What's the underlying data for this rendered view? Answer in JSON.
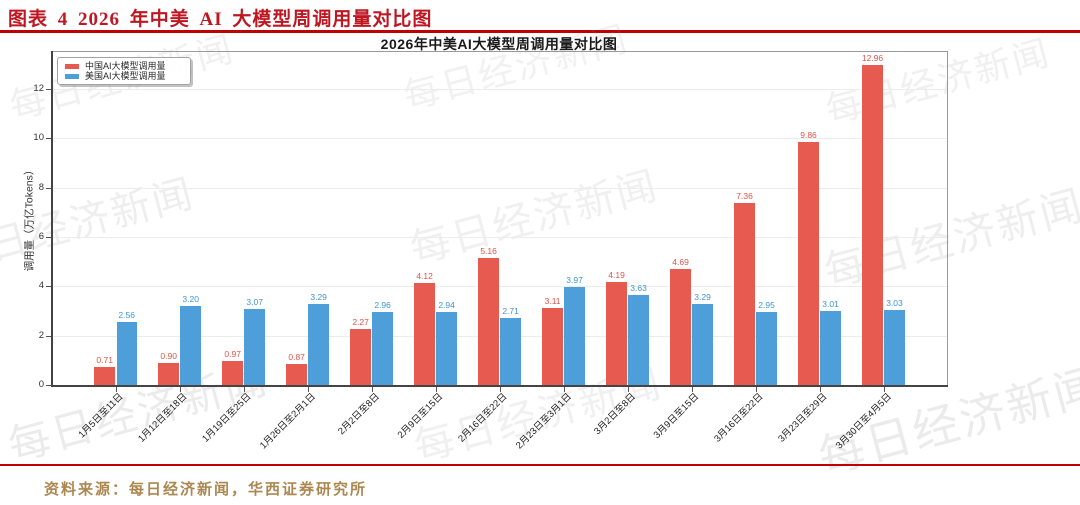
{
  "report": {
    "figure_caption": "图表 4 2026 年中美 AI 大模型周调用量对比图",
    "source_note": "资料来源：每日经济新闻，华西证券研究所",
    "accent_color": "#c00000"
  },
  "watermark": {
    "text": "每日经济新闻"
  },
  "chart_data": {
    "type": "bar",
    "title": "2026年中美AI大模型周调用量对比图",
    "ylabel": "调用量（万亿Tokens）",
    "xlabel": "",
    "categories": [
      "1月5日至11日",
      "1月12日至18日",
      "1月19日至25日",
      "1月26日至2月1日",
      "2月2日至8日",
      "2月9日至15日",
      "2月16日至22日",
      "2月23日至3月1日",
      "3月2日至8日",
      "3月9日至15日",
      "3月16日至22日",
      "3月23日至29日",
      "3月30日至4月5日"
    ],
    "series": [
      {
        "name": "中国AI大模型调用量",
        "color": "#e65a50",
        "label_color": "#e05348",
        "values": [
          0.71,
          0.9,
          0.97,
          0.87,
          2.27,
          4.12,
          5.16,
          3.11,
          4.19,
          4.69,
          7.36,
          9.86,
          12.96
        ]
      },
      {
        "name": "美国AI大模型调用量",
        "color": "#4e9ed9",
        "label_color": "#3f95d2",
        "values": [
          2.56,
          3.2,
          3.07,
          3.29,
          2.96,
          2.94,
          2.71,
          3.97,
          3.63,
          3.29,
          2.95,
          3.01,
          3.03
        ]
      }
    ],
    "yticks": [
      0,
      2,
      4,
      6,
      8,
      10,
      12
    ],
    "ylim": [
      0,
      13.54
    ],
    "grid": "horizontal",
    "legend_position": "upper-left",
    "value_labels": "above-bars"
  }
}
